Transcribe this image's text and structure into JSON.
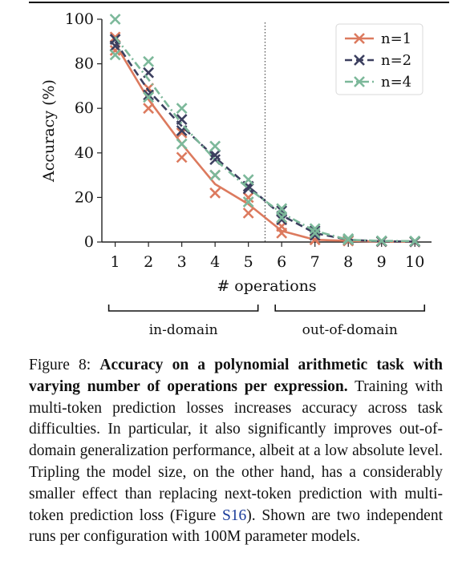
{
  "chart_data": {
    "type": "line",
    "xlabel": "# operations",
    "ylabel": "Accuracy (%)",
    "categories": [
      "1",
      "2",
      "3",
      "4",
      "5",
      "6",
      "7",
      "8",
      "9",
      "10"
    ],
    "xlim": [
      0.6,
      10.5
    ],
    "ylim": [
      0,
      100
    ],
    "yticks": [
      "0",
      "20",
      "40",
      "60",
      "80",
      "100"
    ],
    "legend_position": "top-right",
    "divider_between": [
      5,
      6
    ],
    "series": [
      {
        "name": "n=1",
        "color": "#dc7a5e",
        "dash": "solid",
        "mean": [
          89,
          64,
          44,
          26,
          17,
          5,
          1,
          0.5,
          0.2,
          0.1
        ],
        "runs": [
          [
            92,
            69,
            49,
            30,
            20,
            7,
            1,
            0.5,
            0.2,
            0.1
          ],
          [
            86,
            60,
            38,
            22,
            13,
            4,
            1,
            0.5,
            0.2,
            0.1
          ]
        ]
      },
      {
        "name": "n=2",
        "color": "#3c3f5f",
        "dash": "dash",
        "mean": [
          90,
          68,
          52,
          38,
          25,
          12,
          4,
          1,
          0.3,
          0.2
        ],
        "runs": [
          [
            91,
            76,
            55,
            39,
            25,
            14,
            5,
            1,
            0.3,
            0.2
          ],
          [
            88,
            66,
            50,
            37,
            24,
            10,
            3,
            1,
            0.3,
            0.2
          ]
        ]
      },
      {
        "name": "n=4",
        "color": "#7cb89a",
        "dash": "dashdot",
        "mean": [
          92,
          73,
          53,
          37,
          24,
          13,
          5,
          1,
          0.5,
          0.4
        ],
        "runs": [
          [
            100,
            81,
            60,
            43,
            28,
            15,
            6,
            1.5,
            0.5,
            0.4
          ],
          [
            84,
            65,
            44,
            30,
            18,
            11,
            4,
            1,
            0.5,
            0.4
          ]
        ]
      }
    ],
    "regions": [
      {
        "label": "in-domain",
        "from": 1,
        "to": 5
      },
      {
        "label": "out-of-domain",
        "from": 6,
        "to": 10
      }
    ]
  },
  "caption": {
    "label": "Figure 8: ",
    "bold": "Accuracy on a polynomial arithmetic task with varying number of operations per expression.",
    "text_a": " Training with multi-token prediction losses increases accuracy across task difficulties. In particular, it also significantly improves out-of-domain generalization performance, albeit at a low absolute level. Tripling the model size, on the other hand, has a considerably smaller effect than replacing next-token prediction with multi-token prediction loss (Figure ",
    "ref": "S16",
    "text_b": "). Shown are two independent runs per configuration with 100M parameter models."
  }
}
